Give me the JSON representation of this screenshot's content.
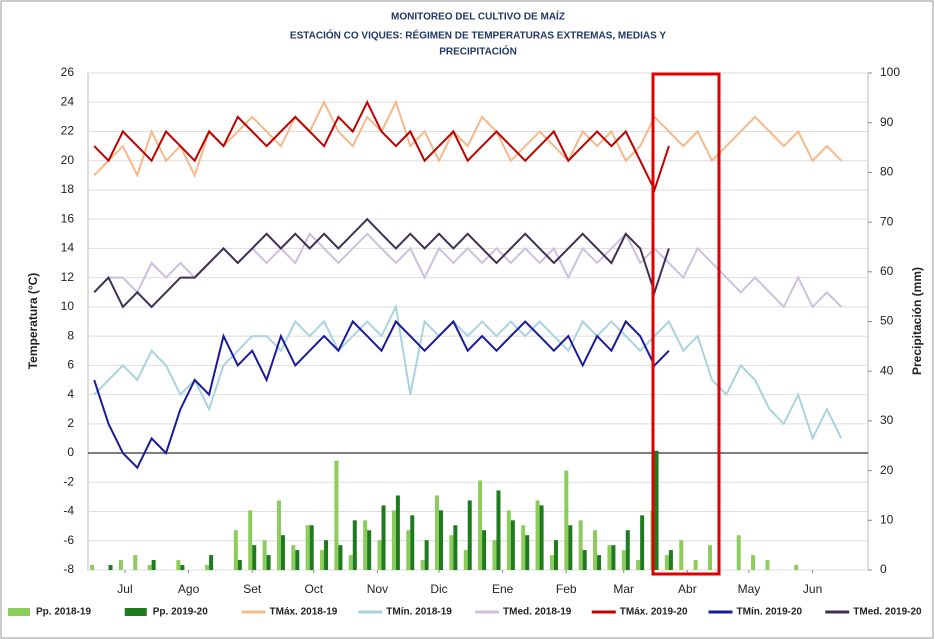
{
  "chart_data": {
    "type": "line",
    "title": "MONITOREO DEL CULTIVO DE MAÍZ",
    "subtitle": [
      "ESTACIÓN  CO VIQUES: RÉGIMEN DE TEMPERATURAS EXTREMAS, MEDIAS Y",
      "PRECIPITACIÓN"
    ],
    "y_label": "Temperatura (°C)",
    "y2_label": "Precipitación (mm)",
    "xlim": [
      -3,
      377
    ],
    "xticks": [
      {
        "value": 15,
        "label": "Jul"
      },
      {
        "value": 46,
        "label": "Ago"
      },
      {
        "value": 77,
        "label": "Set"
      },
      {
        "value": 107,
        "label": "Oct"
      },
      {
        "value": 138,
        "label": "Nov"
      },
      {
        "value": 168,
        "label": "Dic"
      },
      {
        "value": 199,
        "label": "Ene"
      },
      {
        "value": 230,
        "label": "Feb"
      },
      {
        "value": 258,
        "label": "Mar"
      },
      {
        "value": 289,
        "label": "Abr"
      },
      {
        "value": 319,
        "label": "May"
      },
      {
        "value": 350,
        "label": "Jun"
      }
    ],
    "ylim": [
      -8,
      26
    ],
    "yticks": [
      -8,
      -6,
      -4,
      -2,
      0,
      2,
      4,
      6,
      8,
      10,
      12,
      14,
      16,
      18,
      20,
      22,
      24,
      26
    ],
    "y2lim": [
      0,
      100
    ],
    "y2ticks": [
      0,
      10,
      20,
      30,
      40,
      50,
      60,
      70,
      80,
      90,
      100
    ],
    "grid": true,
    "x": [
      0,
      7,
      14,
      21,
      28,
      35,
      42,
      49,
      56,
      63,
      70,
      77,
      84,
      91,
      98,
      105,
      112,
      119,
      126,
      133,
      140,
      147,
      154,
      161,
      168,
      175,
      182,
      189,
      196,
      203,
      210,
      217,
      224,
      231,
      238,
      245,
      252,
      259,
      266,
      273,
      280,
      287,
      294,
      301,
      308,
      315,
      322,
      329,
      336,
      343,
      350,
      357,
      364
    ],
    "series": [
      {
        "name": "Pp. 2018-19",
        "type": "bar",
        "axis": "y2",
        "color": "#8ccc5a",
        "values": [
          1,
          0,
          2,
          3,
          1,
          0,
          2,
          0,
          1,
          0,
          8,
          12,
          6,
          14,
          5,
          9,
          4,
          22,
          3,
          10,
          6,
          12,
          8,
          2,
          15,
          7,
          4,
          18,
          6,
          12,
          9,
          14,
          3,
          20,
          10,
          8,
          5,
          4,
          2,
          12,
          3,
          6,
          2,
          5,
          0,
          7,
          3,
          2,
          0,
          1,
          0,
          0,
          0
        ]
      },
      {
        "name": "Pp. 2019-20",
        "type": "bar",
        "axis": "y2",
        "color": "#1e7a1e",
        "values": [
          0,
          1,
          0,
          0,
          2,
          0,
          1,
          0,
          3,
          0,
          2,
          5,
          3,
          7,
          4,
          9,
          6,
          5,
          10,
          8,
          13,
          15,
          11,
          6,
          12,
          9,
          14,
          8,
          16,
          10,
          7,
          13,
          6,
          9,
          4,
          3,
          5,
          8,
          11,
          24,
          4,
          null,
          null,
          null,
          null,
          null,
          null,
          null,
          null,
          null,
          null,
          null,
          null
        ]
      },
      {
        "name": "TMáx. 2018-19",
        "type": "line",
        "color": "#f5b98a",
        "values": [
          19,
          20,
          21,
          19,
          22,
          20,
          21,
          19,
          22,
          21,
          22,
          23,
          22,
          21,
          23,
          22,
          24,
          22,
          21,
          23,
          22,
          24,
          21,
          22,
          20,
          22,
          21,
          23,
          22,
          20,
          21,
          22,
          21,
          20,
          22,
          21,
          22,
          20,
          21,
          23,
          22,
          21,
          22,
          20,
          21,
          22,
          23,
          22,
          21,
          22,
          20,
          21,
          20
        ]
      },
      {
        "name": "TMín. 2018-19",
        "type": "line",
        "color": "#a8d4e0",
        "values": [
          4,
          5,
          6,
          5,
          7,
          6,
          4,
          5,
          3,
          6,
          7,
          8,
          8,
          7,
          9,
          8,
          9,
          7,
          8,
          9,
          8,
          10,
          4,
          9,
          8,
          9,
          8,
          9,
          8,
          9,
          8,
          9,
          8,
          7,
          9,
          8,
          9,
          8,
          7,
          8,
          9,
          7,
          8,
          5,
          4,
          6,
          5,
          3,
          2,
          4,
          1,
          3,
          1
        ]
      },
      {
        "name": "TMed. 2018-19",
        "type": "line",
        "color": "#cdc0dd",
        "values": [
          11,
          12,
          12,
          11,
          13,
          12,
          13,
          12,
          13,
          14,
          13,
          14,
          13,
          14,
          13,
          15,
          14,
          13,
          14,
          15,
          14,
          13,
          14,
          12,
          14,
          13,
          14,
          13,
          14,
          13,
          14,
          13,
          14,
          12,
          14,
          13,
          14,
          15,
          13,
          14,
          13,
          12,
          14,
          13,
          12,
          11,
          12,
          11,
          10,
          12,
          10,
          11,
          10
        ]
      },
      {
        "name": "TMáx. 2019-20",
        "type": "line",
        "color": "#c00000",
        "values": [
          21,
          20,
          22,
          21,
          20,
          22,
          21,
          20,
          22,
          21,
          23,
          22,
          21,
          22,
          23,
          22,
          21,
          23,
          22,
          24,
          22,
          21,
          22,
          20,
          21,
          22,
          20,
          21,
          22,
          21,
          20,
          21,
          22,
          20,
          21,
          22,
          21,
          22,
          20,
          18,
          21,
          null,
          null,
          null,
          null,
          null,
          null,
          null,
          null,
          null,
          null,
          null,
          null
        ]
      },
      {
        "name": "TMín. 2019-20",
        "type": "line",
        "color": "#1a1a9c",
        "values": [
          5,
          2,
          0,
          -1,
          1,
          0,
          3,
          5,
          4,
          8,
          6,
          7,
          5,
          8,
          6,
          7,
          8,
          7,
          9,
          8,
          7,
          9,
          8,
          7,
          8,
          9,
          7,
          8,
          7,
          8,
          9,
          8,
          7,
          8,
          6,
          8,
          7,
          9,
          8,
          6,
          7,
          null,
          null,
          null,
          null,
          null,
          null,
          null,
          null,
          null,
          null,
          null,
          null
        ]
      },
      {
        "name": "TMed. 2019-20",
        "type": "line",
        "color": "#3f2f55",
        "values": [
          11,
          12,
          10,
          11,
          10,
          11,
          12,
          12,
          13,
          14,
          13,
          14,
          15,
          14,
          15,
          14,
          15,
          14,
          15,
          16,
          15,
          14,
          15,
          14,
          15,
          14,
          15,
          14,
          13,
          14,
          15,
          14,
          13,
          14,
          15,
          14,
          13,
          15,
          14,
          11,
          14,
          null,
          null,
          null,
          null,
          null,
          null,
          null,
          null,
          null,
          null,
          null,
          null
        ]
      }
    ]
  }
}
